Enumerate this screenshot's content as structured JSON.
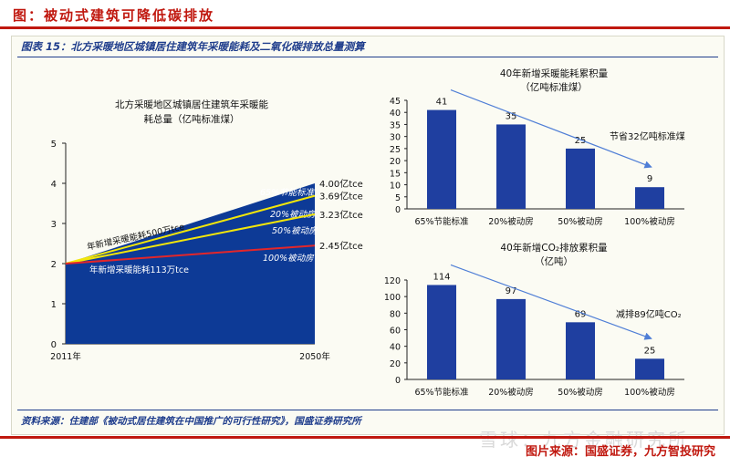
{
  "page": {
    "heading": "图：被动式建筑可降低碳排放",
    "credit": "图片来源：国盛证券，九方智投研究",
    "watermark": "雪球：九方金融研究所"
  },
  "figure": {
    "title": "图表 15：北方采暖地区城镇居住建筑年采暖能耗及二氧化碳排放总量测算",
    "source": "资料来源：住建部《被动式居住建筑在中国推广的可行性研究》，国盛证券研究所"
  },
  "colors": {
    "accent": "#c0180f",
    "navy": "#1f3d8c",
    "area": "#0d3a96",
    "bar": "#1f3fa0",
    "yellow": "#f2e60a",
    "red": "#e3262a",
    "white": "#ffffff",
    "arrow": "#4f7ed6"
  },
  "chart_data": [
    {
      "type": "area",
      "title_lines": [
        "北方采暖地区城镇居住建筑年采暖能",
        "耗总量（亿吨标准煤）"
      ],
      "x": [
        "2011年",
        "2050年"
      ],
      "ylim": [
        0,
        5
      ],
      "yticks": [
        "0",
        "1",
        "2",
        "3",
        "4",
        "5"
      ],
      "series": [
        {
          "name": "65%节能标准",
          "values": [
            2.0,
            4.0
          ],
          "end_label": "4.00亿tce"
        },
        {
          "name": "20%被动房",
          "values": [
            2.0,
            3.69
          ],
          "end_label": "3.69亿tce"
        },
        {
          "name": "50%被动房",
          "values": [
            2.0,
            3.23
          ],
          "end_label": "3.23亿tce"
        },
        {
          "name": "100%被动房",
          "values": [
            2.0,
            2.45
          ],
          "end_label": "2.45亿tce"
        }
      ],
      "annotations": [
        "年新增采暖能耗500万tce",
        "年新增采暖能耗113万tce"
      ]
    },
    {
      "type": "bar",
      "title_lines": [
        "40年新增采暖能耗累积量",
        "（亿吨标准煤）"
      ],
      "categories": [
        "65%节能标准",
        "20%被动房",
        "50%被动房",
        "100%被动房"
      ],
      "values": [
        41,
        35,
        25,
        9
      ],
      "ylim": [
        0,
        45
      ],
      "yticks": [
        "0",
        "5",
        "10",
        "15",
        "20",
        "25",
        "30",
        "35",
        "40",
        "45"
      ],
      "annotation": "节省32亿吨标准煤"
    },
    {
      "type": "bar",
      "title_lines": [
        "40年新增CO₂排放累积量",
        "（亿吨）"
      ],
      "categories": [
        "65%节能标准",
        "20%被动房",
        "50%被动房",
        "100%被动房"
      ],
      "values": [
        114,
        97,
        69,
        25
      ],
      "ylim": [
        0,
        120
      ],
      "yticks": [
        "0",
        "20",
        "40",
        "60",
        "80",
        "100",
        "120"
      ],
      "annotation": "减排89亿吨CO₂"
    }
  ]
}
